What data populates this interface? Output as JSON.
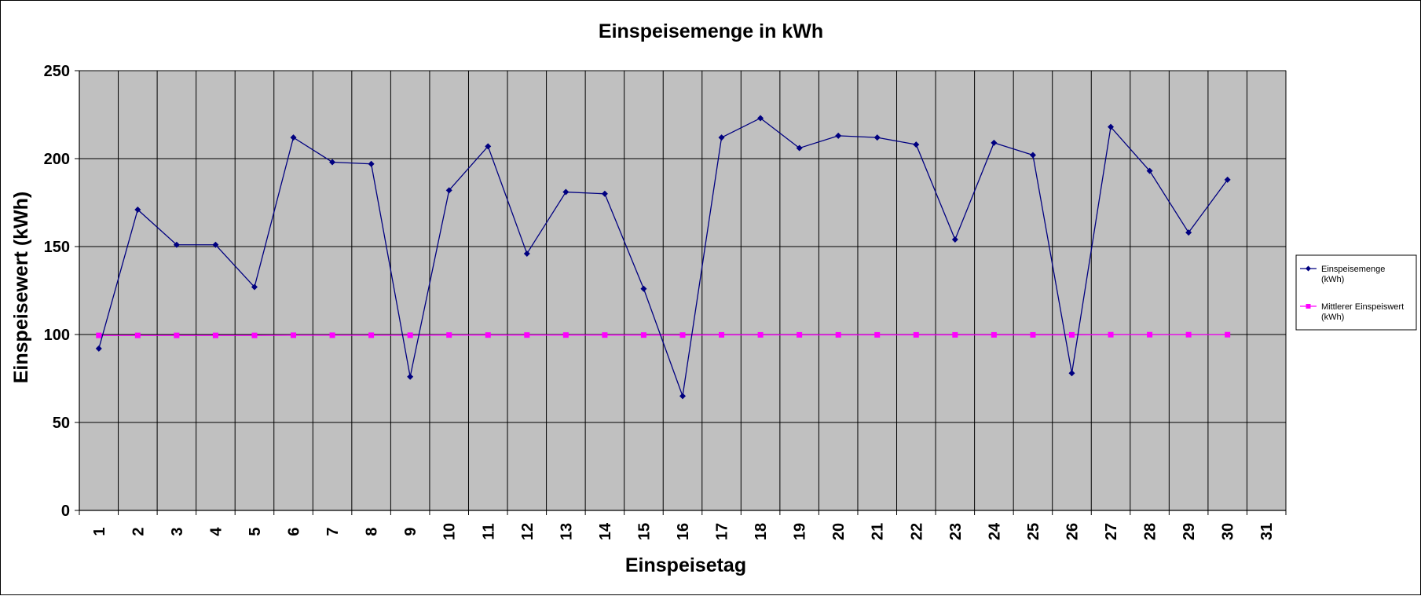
{
  "chart_data": {
    "type": "line",
    "title": "Einspeisemenge in kWh",
    "xlabel": "Einspeisetag",
    "ylabel": "Einspeisewert  (kWh)",
    "ylim": [
      0,
      250
    ],
    "yticks": [
      0,
      50,
      100,
      150,
      200,
      250
    ],
    "categories": [
      "1",
      "2",
      "3",
      "4",
      "5",
      "6",
      "7",
      "8",
      "9",
      "10",
      "11",
      "12",
      "13",
      "14",
      "15",
      "16",
      "17",
      "18",
      "19",
      "20",
      "21",
      "22",
      "23",
      "24",
      "25",
      "26",
      "27",
      "28",
      "29",
      "30",
      "31"
    ],
    "grid": true,
    "legend_position": "right",
    "plot_background": "#c0c0c0",
    "series": [
      {
        "name": "Einspeisemenge (kWh)",
        "legend_lines": [
          "Einspeisemenge",
          "(kWh)"
        ],
        "color": "#000080",
        "marker": "diamond",
        "values": [
          92,
          171,
          151,
          151,
          127,
          212,
          198,
          197,
          76,
          182,
          207,
          146,
          181,
          180,
          126,
          65,
          212,
          223,
          206,
          213,
          212,
          208,
          154,
          209,
          202,
          78,
          218,
          193,
          158,
          188,
          null
        ]
      },
      {
        "name": "Mittlerer Einspeiswert (kWh)",
        "legend_lines": [
          "Mittlerer Einspeiswert",
          "(kWh)"
        ],
        "color": "#ff00ff",
        "marker": "square",
        "values": [
          99.5,
          99.5,
          99.5,
          99.5,
          99.5,
          99.6,
          99.6,
          99.6,
          99.6,
          99.7,
          99.7,
          99.7,
          99.7,
          99.7,
          99.7,
          99.7,
          99.8,
          99.8,
          99.8,
          99.8,
          99.8,
          99.8,
          99.8,
          99.8,
          99.8,
          99.8,
          99.9,
          99.9,
          99.9,
          99.9,
          null
        ]
      }
    ]
  }
}
